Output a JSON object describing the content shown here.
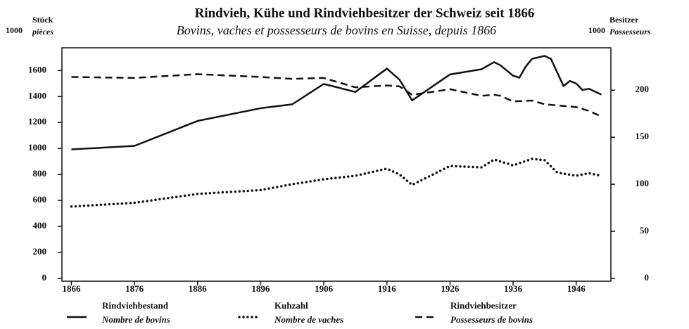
{
  "chart_data": {
    "type": "line",
    "title": "Rindvieh, Kühe und Rindviehbesitzer der Schweiz seit 1866",
    "subtitle": "Bovins, vaches et possesseurs de bovins en Suisse, depuis 1866",
    "y_unit": "1000",
    "y_label": "Stück",
    "y_label_fr": "pièces",
    "y2_unit": "1000",
    "y2_label": "Besitzer",
    "y2_label_fr": "Possesseurs",
    "xlim": [
      1864.5,
      1951.5
    ],
    "xticks": [
      1866,
      1876,
      1886,
      1896,
      1906,
      1916,
      1926,
      1936,
      1946
    ],
    "ylim": [
      0,
      1775
    ],
    "yticks": [
      0,
      200,
      400,
      600,
      800,
      1000,
      1200,
      1400,
      1600
    ],
    "y2lim": [
      0,
      245
    ],
    "y2ticks": [
      0,
      50,
      100,
      150,
      200
    ],
    "series": [
      {
        "name": "Rindviehbestand",
        "subname": "Nombre de bovins",
        "color": "#111",
        "style": "solid",
        "x": [
          1866,
          1876,
          1886,
          1896,
          1901,
          1906,
          1911,
          1916,
          1918,
          1920,
          1926,
          1931,
          1933,
          1934,
          1936,
          1937,
          1938,
          1939,
          1941,
          1942,
          1944,
          1945,
          1946,
          1947,
          1948,
          1950
        ],
        "values": [
          993,
          1020,
          1212,
          1310,
          1340,
          1497,
          1435,
          1615,
          1530,
          1370,
          1570,
          1610,
          1665,
          1640,
          1560,
          1545,
          1630,
          1690,
          1713,
          1690,
          1480,
          1520,
          1500,
          1450,
          1460,
          1415
        ]
      },
      {
        "name": "Kuhzahl",
        "subname": "Nombre de vaches",
        "color": "#111",
        "style": "dotted",
        "x": [
          1866,
          1876,
          1886,
          1896,
          1901,
          1906,
          1911,
          1916,
          1918,
          1920,
          1926,
          1931,
          1933,
          1936,
          1939,
          1941,
          1943,
          1946,
          1948,
          1950
        ],
        "values": [
          553,
          582,
          650,
          680,
          725,
          763,
          790,
          845,
          800,
          720,
          865,
          855,
          915,
          870,
          920,
          910,
          815,
          790,
          810,
          790
        ]
      },
      {
        "name": "Rindviehbesitzer",
        "subname": "Possesseurs de bovins",
        "color": "#111",
        "style": "dashed",
        "axis": "y2",
        "x": [
          1866,
          1876,
          1886,
          1896,
          1901,
          1906,
          1911,
          1916,
          1918,
          1920,
          1926,
          1931,
          1933,
          1934,
          1936,
          1939,
          1941,
          1946,
          1948,
          1950
        ],
        "values": [
          214,
          213,
          217,
          214,
          212,
          213,
          203,
          205,
          204,
          195,
          201,
          194,
          195,
          194,
          188,
          189,
          185,
          182,
          178,
          172
        ]
      }
    ]
  }
}
